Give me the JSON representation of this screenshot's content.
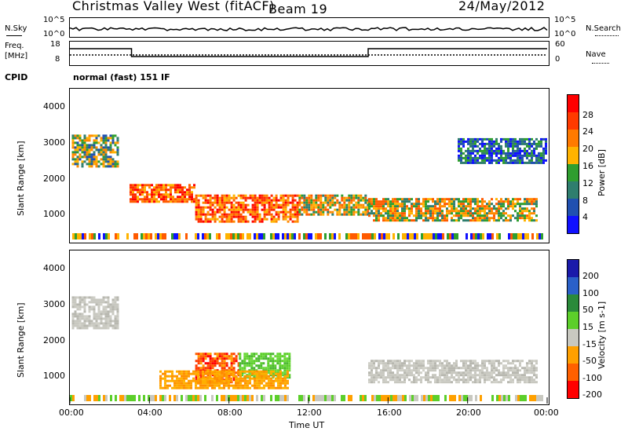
{
  "header": {
    "title": "Christmas Valley West (fitACF)",
    "beam": "Beam 19",
    "date": "24/May/2012"
  },
  "noise_panel": {
    "left_label": "N.Sky",
    "right_label": "N.Search",
    "left_ticks": [
      "10^5",
      "10^0"
    ],
    "right_ticks": [
      "10^5",
      "10^0"
    ]
  },
  "freq_panel": {
    "left_label_1": "Freq.",
    "left_label_2": "[MHz]",
    "right_label": "Nave",
    "left_ticks": [
      "18",
      "8"
    ],
    "right_ticks": [
      "60",
      "0"
    ],
    "cpid_label": "CPID",
    "cpid_text": "normal (fast) 151 IF"
  },
  "axes": {
    "ylabel": "Slant Range [km]",
    "xlabel": "Time UT",
    "x_ticks": [
      "00:00",
      "04:00",
      "08:00",
      "12:00",
      "16:00",
      "20:00",
      "00:00"
    ],
    "y_ticks": [
      "4000",
      "3000",
      "2000",
      "1000"
    ]
  },
  "power_colorbar": {
    "label": "Power [dB]",
    "ticks": [
      "28",
      "24",
      "20",
      "16",
      "12",
      "8",
      "4"
    ],
    "colors": [
      "#ff0000",
      "#ff3a00",
      "#ff7a00",
      "#ffb300",
      "#2f9e2f",
      "#2f7e6e",
      "#2050b0",
      "#1010ff"
    ]
  },
  "velocity_colorbar": {
    "label": "Velocity [m s-1]",
    "ticks": [
      "200",
      "100",
      "50",
      "15",
      "-15",
      "-50",
      "-100",
      "-200"
    ],
    "colors": [
      "#1a1aaa",
      "#2a60c8",
      "#2a8a3a",
      "#5ccf2a",
      "#c8c8c0",
      "#ffa000",
      "#ff6000",
      "#ff0000"
    ]
  },
  "chart_data": {
    "type": "heatmap",
    "x_range_hours": [
      0,
      24
    ],
    "y_range_km": [
      180,
      4500
    ],
    "power_regions": [
      {
        "t0": 0.1,
        "t1": 2.4,
        "r0": 2300,
        "r1": 3200,
        "level": "mixed_low"
      },
      {
        "t0": 3.0,
        "t1": 6.3,
        "r0": 1300,
        "r1": 1800,
        "level": "high"
      },
      {
        "t0": 6.3,
        "t1": 11.5,
        "r0": 750,
        "r1": 1500,
        "level": "high"
      },
      {
        "t0": 11.5,
        "t1": 15.0,
        "r0": 900,
        "r1": 1500,
        "level": "mid"
      },
      {
        "t0": 15.0,
        "t1": 23.5,
        "r0": 750,
        "r1": 1400,
        "level": "mid"
      },
      {
        "t0": 19.5,
        "t1": 23.9,
        "r0": 2400,
        "r1": 3100,
        "level": "low"
      }
    ],
    "velocity_regions": [
      {
        "t0": 0.1,
        "t1": 2.4,
        "r0": 2300,
        "r1": 3200,
        "class": "-15..15"
      },
      {
        "t0": 6.3,
        "t1": 8.5,
        "r0": 750,
        "r1": 1600,
        "class": "-200..-100"
      },
      {
        "t0": 8.5,
        "t1": 11.0,
        "r0": 900,
        "r1": 1600,
        "class": "15..50"
      },
      {
        "t0": 4.5,
        "t1": 11.0,
        "r0": 600,
        "r1": 1100,
        "class": "-50..-15"
      },
      {
        "t0": 15.0,
        "t1": 23.5,
        "r0": 750,
        "r1": 1400,
        "class": "-15..15"
      }
    ]
  }
}
